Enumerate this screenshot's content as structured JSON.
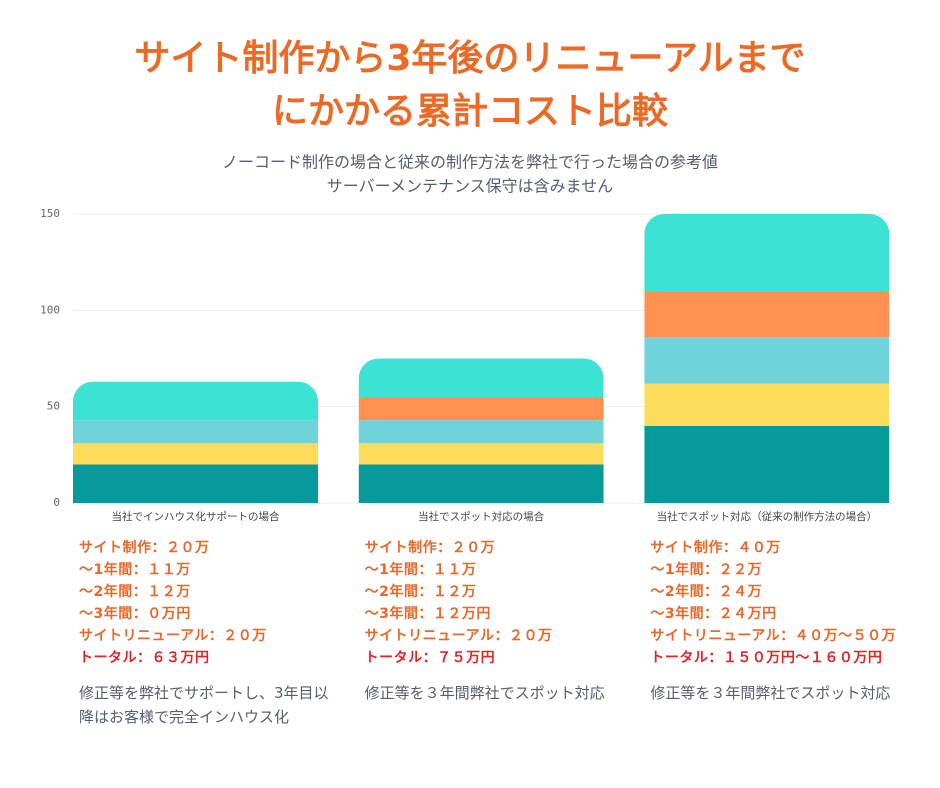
{
  "chart_data": {
    "type": "stacked-bar",
    "title": [
      "サイト制作から3年後のリニューアルまで",
      "にかかる累計コスト比較"
    ],
    "subtitle": [
      "ノーコード制作の場合と従来の制作方法を弊社で行った場合の参考値",
      "サーバーメンテナンス保守は含みません"
    ],
    "categories": [
      "当社でインハウス化サポートの場合",
      "当社でスポット対応の場合",
      "当社でスポット対応（従来の制作方法の場合）"
    ],
    "series": [
      {
        "color": "#079a9a",
        "values": [
          20,
          20,
          40
        ]
      },
      {
        "color": "#fddc5c",
        "values": [
          11,
          11,
          22
        ]
      },
      {
        "color": "#6fd3dc",
        "values": [
          12,
          12,
          24
        ]
      },
      {
        "color": "#ff9150",
        "values": [
          0,
          12,
          24
        ]
      },
      {
        "color": "#3ce3d4",
        "values": [
          20,
          20,
          40
        ]
      }
    ],
    "ylim": [
      0,
      150
    ],
    "yticks": [
      0,
      50,
      100,
      150
    ],
    "grid": true,
    "annotations": [
      {
        "lines": [
          "サイト制作：２０万",
          "～1年間：１１万",
          "～2年間：１２万",
          "～3年間：０万円",
          "サイトリニューアル：２０万"
        ],
        "total": "トータル：６３万円",
        "note": "修正等を弊社でサポートし、3年目以降はお客様で完全インハウス化"
      },
      {
        "lines": [
          "サイト制作：２０万",
          "～1年間：１１万",
          "～2年間：１２万",
          "～3年間：１２万円",
          "サイトリニューアル：２０万"
        ],
        "total": "トータル：７５万円",
        "note": "修正等を３年間弊社でスポット対応"
      },
      {
        "lines": [
          "サイト制作：４０万",
          "～1年間：２２万",
          "～2年間：２４万",
          "～3年間：２４万円",
          "サイトリニューアル：４０万～５０万"
        ],
        "total": "トータル：１５０万円～１６０万円",
        "note": "修正等を３年間弊社でスポット対応"
      }
    ]
  }
}
